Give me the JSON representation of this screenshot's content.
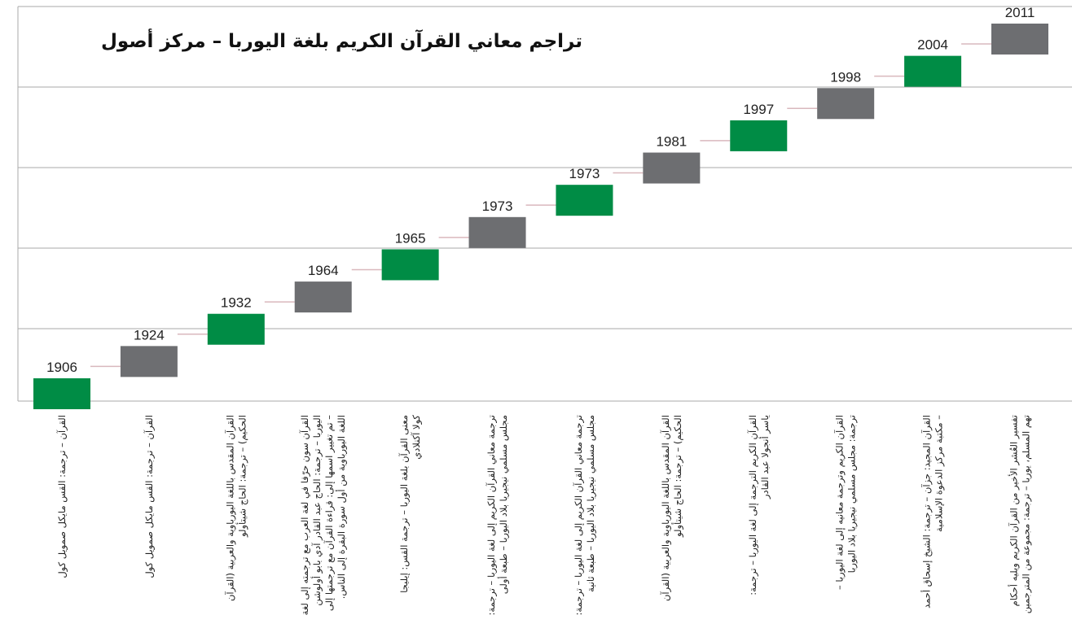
{
  "title": "تراجم معاني القرآن الكريم بلغة اليوربا – مركز أصول",
  "items": [
    {
      "year": 1906,
      "lines": [
        "القرآن – ترجمة: القس مايكل صمويل كول"
      ]
    },
    {
      "year": 1924,
      "lines": [
        "القرآن – ترجمة: القس مايكل صمويل كول"
      ]
    },
    {
      "year": 1932,
      "lines": [
        "القرآن المقدس باللغة اليورباوية والعربية (القرآن",
        "الحكيم) – ترجمة: الحاج شيتأولو"
      ]
    },
    {
      "year": 1964,
      "lines": [
        "القرآن سون حرّفا في لغة العرب مع ترجمته إلى لغة",
        "اليوربا – ترجمة: الحاج عبد القادر آدي بابو أولوشن",
        "– تم تغيير اسمها إلى: قراءة القرآن مع ترجمتها إلى",
        "اللغة اليورباوية من أول سورة البقرة إلى الناس."
      ]
    },
    {
      "year": 1965,
      "lines": [
        "معنى القرآن بلغة اليوربا – ترجمة القس: إيليجا",
        "كولا آكنلادي"
      ]
    },
    {
      "year": 1973,
      "lines": [
        "ترجمة معاني القرآن الكريم إلى لغة اليوربا – ترجمة:",
        "مجلس مسلمي نيجيريا بلاد اليوربا – طبعة أولى"
      ]
    },
    {
      "year": 1973,
      "lines": [
        "ترجمة معاني القرآن الكريم إلى لغة اليوربا – ترجمة:",
        "مجلس مسلمي نيجيريا بلاد اليوربا – طبعة ثانية"
      ]
    },
    {
      "year": 1981,
      "lines": [
        "القرآن المقدس باللغة اليورباوية والعربية (القرآن",
        "الحكيم) – ترجمة: الحاج شيتأولو"
      ]
    },
    {
      "year": 1997,
      "lines": [
        "القرآن الكريم الترجمة إلى لغة اليوربا – ترجمة:",
        "ياسر أنجولا عبد القادر"
      ]
    },
    {
      "year": 1998,
      "lines": [
        "القرآن الكريم وترجمة معانيه إلى لغة اليوربا –",
        "ترجمة: مجلس مسلمي نيجيريا بلاد اليوربا"
      ]
    },
    {
      "year": 2004,
      "lines": [
        "القرآن المجيد: جزآن – ترجمة: الشيخ إسحاق أحمد",
        "– مكتبة مركز الدعوة الإسلامية"
      ]
    },
    {
      "year": 2011,
      "lines": [
        "تفسير العُشر الأخير من القرآن الكريم ويليه أحكام",
        "تهم المسلم، يوربا – ترجمة: مجموعة من المترجمين"
      ]
    }
  ],
  "colors": [
    "#008c45",
    "#6d6e71"
  ]
}
